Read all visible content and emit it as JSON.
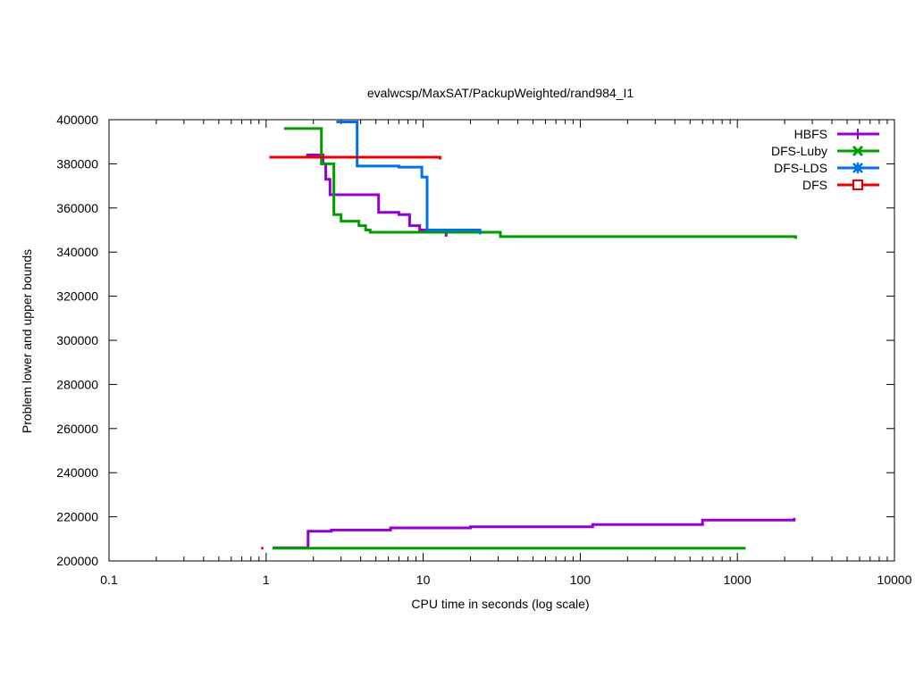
{
  "chart_data": {
    "type": "line",
    "title": "evalwcsp/MaxSAT/PackupWeighted/rand984_I1",
    "xlabel": "CPU time in seconds (log scale)",
    "ylabel": "Problem lower and upper bounds",
    "xscale": "log",
    "xlim": [
      0.1,
      10000
    ],
    "ylim": [
      200000,
      400000
    ],
    "x_ticks": [
      0.1,
      1,
      10,
      100,
      1000,
      10000
    ],
    "x_tick_labels": [
      "0.1",
      "1",
      "10",
      "100",
      "1000",
      "10000"
    ],
    "y_ticks": [
      200000,
      220000,
      240000,
      260000,
      280000,
      300000,
      320000,
      340000,
      360000,
      380000,
      400000
    ],
    "y_tick_labels": [
      "200000",
      "220000",
      "240000",
      "260000",
      "280000",
      "300000",
      "320000",
      "340000",
      "360000",
      "380000",
      "400000"
    ],
    "legend_position": "top-right",
    "series": [
      {
        "name": "HBFS",
        "color": "#9400d3",
        "marker": "plus",
        "upper": [
          [
            1.8,
            384000
          ],
          [
            2.3,
            384000
          ],
          [
            2.3,
            380000
          ],
          [
            2.4,
            380000
          ],
          [
            2.4,
            373000
          ],
          [
            2.55,
            373000
          ],
          [
            2.55,
            366000
          ],
          [
            5.2,
            366000
          ],
          [
            5.2,
            358000
          ],
          [
            7.0,
            358000
          ],
          [
            7.0,
            357000
          ],
          [
            8.2,
            357000
          ],
          [
            8.2,
            352000
          ],
          [
            9.5,
            352000
          ],
          [
            9.5,
            350000
          ],
          [
            14.0,
            350000
          ],
          [
            14.0,
            347000
          ]
        ],
        "lower": [
          [
            1.1,
            206000
          ],
          [
            1.85,
            206000
          ],
          [
            1.85,
            213500
          ],
          [
            2.6,
            213500
          ],
          [
            2.6,
            214000
          ],
          [
            6.2,
            214000
          ],
          [
            6.2,
            215000
          ],
          [
            20,
            215000
          ],
          [
            20,
            215500
          ],
          [
            120,
            215500
          ],
          [
            120,
            216500
          ],
          [
            600,
            216500
          ],
          [
            600,
            218500
          ],
          [
            2300,
            218500
          ],
          [
            2300,
            219500
          ]
        ]
      },
      {
        "name": "DFS-Luby",
        "color": "#009e00",
        "marker": "x",
        "upper": [
          [
            1.3,
            396000
          ],
          [
            2.25,
            396000
          ],
          [
            2.25,
            380000
          ],
          [
            2.7,
            380000
          ],
          [
            2.7,
            357000
          ],
          [
            3.0,
            357000
          ],
          [
            3.0,
            354000
          ],
          [
            3.9,
            354000
          ],
          [
            3.9,
            352000
          ],
          [
            4.3,
            352000
          ],
          [
            4.3,
            350000
          ],
          [
            4.6,
            350000
          ],
          [
            4.6,
            349000
          ],
          [
            31,
            349000
          ],
          [
            31,
            347000
          ],
          [
            2350,
            347000
          ],
          [
            2350,
            346000
          ]
        ],
        "lower": [
          [
            1.1,
            205800
          ],
          [
            1130,
            205800
          ]
        ]
      },
      {
        "name": "DFS-LDS",
        "color": "#0072e6",
        "marker": "star",
        "upper": [
          [
            2.8,
            399000
          ],
          [
            3.8,
            399000
          ],
          [
            3.8,
            379000
          ],
          [
            7.0,
            379000
          ],
          [
            7.0,
            378500
          ],
          [
            9.8,
            378500
          ],
          [
            9.8,
            374000
          ],
          [
            10.6,
            374000
          ],
          [
            10.6,
            350000
          ],
          [
            23,
            350000
          ],
          [
            23,
            348000
          ]
        ],
        "lower": []
      },
      {
        "name": "DFS",
        "color": "#e60000",
        "marker": "square",
        "upper": [
          [
            1.05,
            383000
          ],
          [
            12.8,
            383000
          ],
          [
            12.8,
            382000
          ]
        ],
        "lower": [
          [
            0.93,
            205800
          ],
          [
            0.96,
            205800
          ]
        ]
      }
    ]
  }
}
